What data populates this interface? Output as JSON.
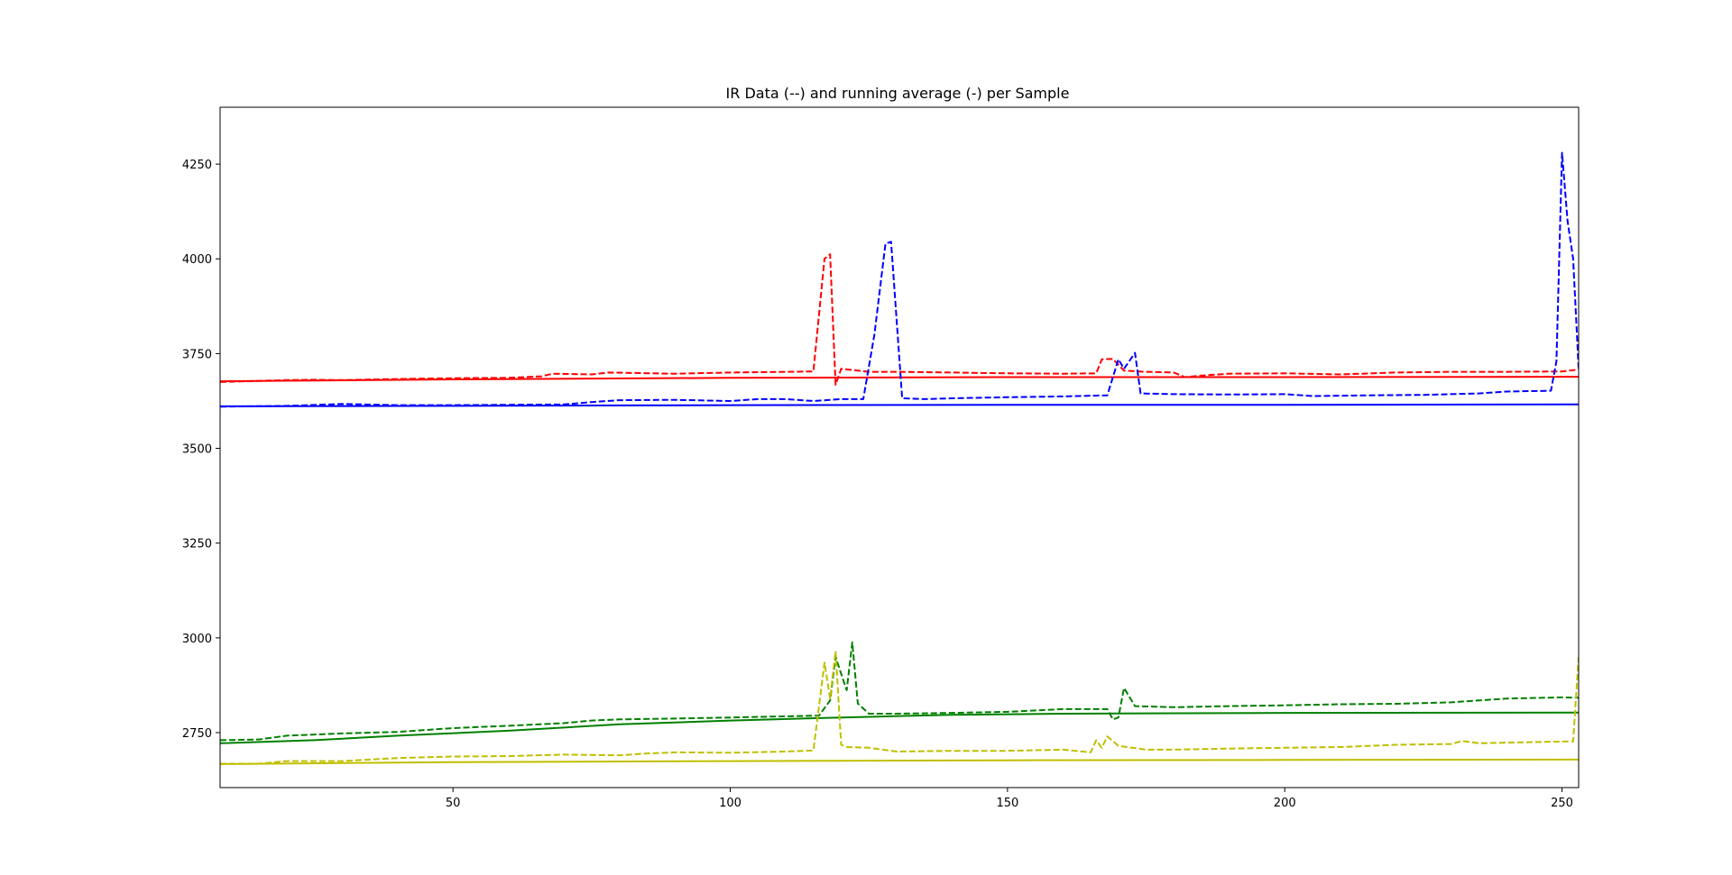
{
  "chart_data": {
    "type": "line",
    "title": "IR Data (--) and running average (-) per Sample",
    "xlabel": "",
    "ylabel": "",
    "xlim": [
      8,
      253
    ],
    "ylim": [
      2605,
      4400
    ],
    "xticks": [
      50,
      100,
      150,
      200,
      250
    ],
    "yticks": [
      2750,
      3000,
      3250,
      3500,
      3750,
      4000,
      4250
    ],
    "grid": false,
    "series": [
      {
        "color": "#ff0000",
        "style": "dashed",
        "points": [
          [
            8,
            3675
          ],
          [
            15,
            3678
          ],
          [
            20,
            3680
          ],
          [
            25,
            3681
          ],
          [
            30,
            3680
          ],
          [
            40,
            3683
          ],
          [
            50,
            3685
          ],
          [
            60,
            3686
          ],
          [
            66,
            3690
          ],
          [
            68,
            3697
          ],
          [
            75,
            3695
          ],
          [
            78,
            3700
          ],
          [
            90,
            3697
          ],
          [
            100,
            3700
          ],
          [
            110,
            3702
          ],
          [
            115,
            3703
          ],
          [
            117,
            4000
          ],
          [
            118,
            4012
          ],
          [
            119,
            3668
          ],
          [
            120,
            3710
          ],
          [
            125,
            3702
          ],
          [
            130,
            3702
          ],
          [
            140,
            3700
          ],
          [
            150,
            3698
          ],
          [
            160,
            3697
          ],
          [
            166,
            3698
          ],
          [
            167,
            3735
          ],
          [
            169,
            3736
          ],
          [
            171,
            3705
          ],
          [
            175,
            3702
          ],
          [
            180,
            3700
          ],
          [
            182,
            3688
          ],
          [
            185,
            3692
          ],
          [
            190,
            3697
          ],
          [
            200,
            3698
          ],
          [
            210,
            3695
          ],
          [
            220,
            3700
          ],
          [
            230,
            3702
          ],
          [
            240,
            3702
          ],
          [
            250,
            3703
          ],
          [
            253,
            3708
          ]
        ]
      },
      {
        "color": "#ff0000",
        "style": "solid",
        "points": [
          [
            8,
            3677
          ],
          [
            50,
            3682
          ],
          [
            100,
            3686
          ],
          [
            150,
            3688
          ],
          [
            200,
            3688
          ],
          [
            253,
            3689
          ]
        ]
      },
      {
        "color": "#0000ff",
        "style": "dashed",
        "points": [
          [
            8,
            3610
          ],
          [
            20,
            3612
          ],
          [
            30,
            3617
          ],
          [
            40,
            3614
          ],
          [
            50,
            3614
          ],
          [
            60,
            3615
          ],
          [
            70,
            3616
          ],
          [
            75,
            3622
          ],
          [
            80,
            3627
          ],
          [
            90,
            3628
          ],
          [
            100,
            3625
          ],
          [
            105,
            3630
          ],
          [
            110,
            3630
          ],
          [
            115,
            3625
          ],
          [
            120,
            3630
          ],
          [
            124,
            3630
          ],
          [
            126,
            3800
          ],
          [
            128,
            4040
          ],
          [
            129,
            4045
          ],
          [
            131,
            3632
          ],
          [
            135,
            3630
          ],
          [
            140,
            3632
          ],
          [
            150,
            3635
          ],
          [
            160,
            3637
          ],
          [
            168,
            3640
          ],
          [
            170,
            3735
          ],
          [
            171,
            3710
          ],
          [
            173,
            3752
          ],
          [
            174,
            3645
          ],
          [
            180,
            3643
          ],
          [
            190,
            3642
          ],
          [
            200,
            3643
          ],
          [
            205,
            3638
          ],
          [
            215,
            3640
          ],
          [
            225,
            3641
          ],
          [
            235,
            3645
          ],
          [
            240,
            3650
          ],
          [
            248,
            3652
          ],
          [
            249,
            3730
          ],
          [
            250,
            4280
          ],
          [
            251,
            4100
          ],
          [
            252,
            4000
          ],
          [
            253,
            3710
          ]
        ]
      },
      {
        "color": "#0000ff",
        "style": "solid",
        "points": [
          [
            8,
            3611
          ],
          [
            50,
            3612
          ],
          [
            100,
            3614
          ],
          [
            150,
            3615
          ],
          [
            200,
            3615
          ],
          [
            253,
            3616
          ]
        ]
      },
      {
        "color": "#008000",
        "style": "dashed",
        "points": [
          [
            8,
            2730
          ],
          [
            15,
            2732
          ],
          [
            20,
            2742
          ],
          [
            30,
            2748
          ],
          [
            40,
            2752
          ],
          [
            50,
            2762
          ],
          [
            60,
            2768
          ],
          [
            70,
            2775
          ],
          [
            75,
            2782
          ],
          [
            80,
            2785
          ],
          [
            90,
            2787
          ],
          [
            100,
            2790
          ],
          [
            110,
            2793
          ],
          [
            116,
            2795
          ],
          [
            118,
            2835
          ],
          [
            119,
            2950
          ],
          [
            120,
            2905
          ],
          [
            121,
            2862
          ],
          [
            122,
            2988
          ],
          [
            123,
            2827
          ],
          [
            125,
            2800
          ],
          [
            130,
            2800
          ],
          [
            140,
            2802
          ],
          [
            150,
            2805
          ],
          [
            160,
            2812
          ],
          [
            168,
            2812
          ],
          [
            169,
            2785
          ],
          [
            170,
            2790
          ],
          [
            171,
            2868
          ],
          [
            173,
            2820
          ],
          [
            180,
            2817
          ],
          [
            190,
            2820
          ],
          [
            200,
            2822
          ],
          [
            210,
            2825
          ],
          [
            220,
            2826
          ],
          [
            230,
            2830
          ],
          [
            235,
            2835
          ],
          [
            240,
            2840
          ],
          [
            250,
            2843
          ],
          [
            253,
            2842
          ]
        ]
      },
      {
        "color": "#008000",
        "style": "solid",
        "points": [
          [
            8,
            2722
          ],
          [
            25,
            2730
          ],
          [
            40,
            2742
          ],
          [
            60,
            2755
          ],
          [
            80,
            2772
          ],
          [
            100,
            2782
          ],
          [
            120,
            2790
          ],
          [
            140,
            2797
          ],
          [
            160,
            2800
          ],
          [
            200,
            2802
          ],
          [
            253,
            2803
          ]
        ]
      },
      {
        "color": "#bfbf00",
        "style": "dashed",
        "points": [
          [
            8,
            2668
          ],
          [
            15,
            2668
          ],
          [
            20,
            2675
          ],
          [
            30,
            2675
          ],
          [
            40,
            2683
          ],
          [
            50,
            2687
          ],
          [
            60,
            2688
          ],
          [
            65,
            2690
          ],
          [
            70,
            2692
          ],
          [
            80,
            2690
          ],
          [
            85,
            2695
          ],
          [
            90,
            2698
          ],
          [
            100,
            2697
          ],
          [
            110,
            2700
          ],
          [
            115,
            2703
          ],
          [
            117,
            2935
          ],
          [
            118,
            2840
          ],
          [
            119,
            2965
          ],
          [
            120,
            2718
          ],
          [
            121,
            2712
          ],
          [
            125,
            2710
          ],
          [
            130,
            2700
          ],
          [
            140,
            2702
          ],
          [
            150,
            2702
          ],
          [
            160,
            2705
          ],
          [
            165,
            2698
          ],
          [
            166,
            2730
          ],
          [
            167,
            2710
          ],
          [
            168,
            2740
          ],
          [
            170,
            2715
          ],
          [
            175,
            2705
          ],
          [
            180,
            2705
          ],
          [
            190,
            2708
          ],
          [
            200,
            2710
          ],
          [
            210,
            2712
          ],
          [
            220,
            2718
          ],
          [
            230,
            2720
          ],
          [
            232,
            2728
          ],
          [
            235,
            2722
          ],
          [
            245,
            2725
          ],
          [
            252,
            2727
          ],
          [
            253,
            2950
          ]
        ]
      },
      {
        "color": "#bfbf00",
        "style": "solid",
        "points": [
          [
            8,
            2667
          ],
          [
            50,
            2672
          ],
          [
            100,
            2675
          ],
          [
            150,
            2677
          ],
          [
            200,
            2678
          ],
          [
            253,
            2679
          ]
        ]
      }
    ]
  }
}
